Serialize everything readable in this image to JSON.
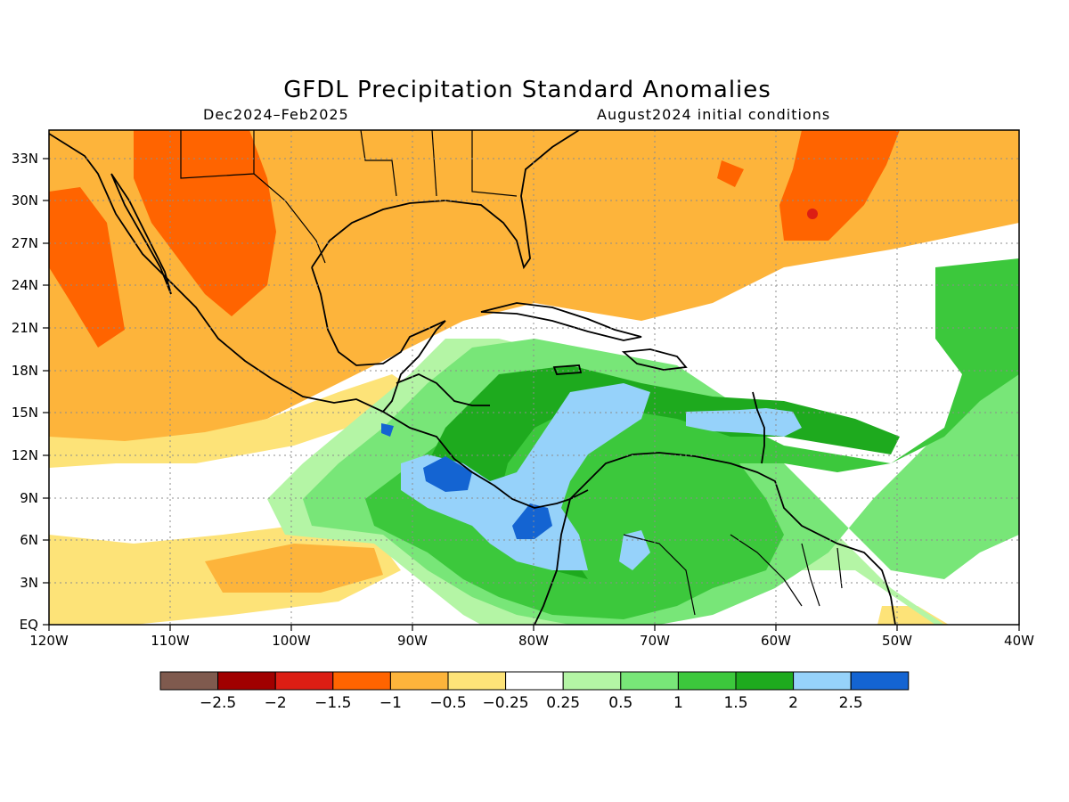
{
  "title": "GFDL Precipitation Standard Anomalies",
  "subtitle_left": "Dec2024–Feb2025",
  "subtitle_right": "August2024 initial conditions",
  "map": {
    "lon_range": [
      -120,
      -40
    ],
    "lat_range": [
      0,
      35
    ],
    "x_ticks": [
      "120W",
      "110W",
      "100W",
      "90W",
      "80W",
      "70W",
      "60W",
      "50W",
      "40W"
    ],
    "y_ticks": [
      "EQ",
      "3N",
      "6N",
      "9N",
      "12N",
      "15N",
      "18N",
      "21N",
      "24N",
      "27N",
      "30N",
      "33N"
    ],
    "grid": "dotted"
  },
  "colorbar": {
    "labels": [
      "−2.5",
      "−2",
      "−1.5",
      "−1",
      "−0.5",
      "−0.25",
      "0.25",
      "0.5",
      "1",
      "1.5",
      "2",
      "2.5"
    ],
    "colors": [
      "#7f5a4e",
      "#a00000",
      "#dc1e14",
      "#ff6400",
      "#fdb43b",
      "#fde378",
      "#ffffff",
      "#b4f5a5",
      "#78e678",
      "#3cc83c",
      "#1eaa1e",
      "#96d2fa",
      "#1464d2"
    ]
  }
}
